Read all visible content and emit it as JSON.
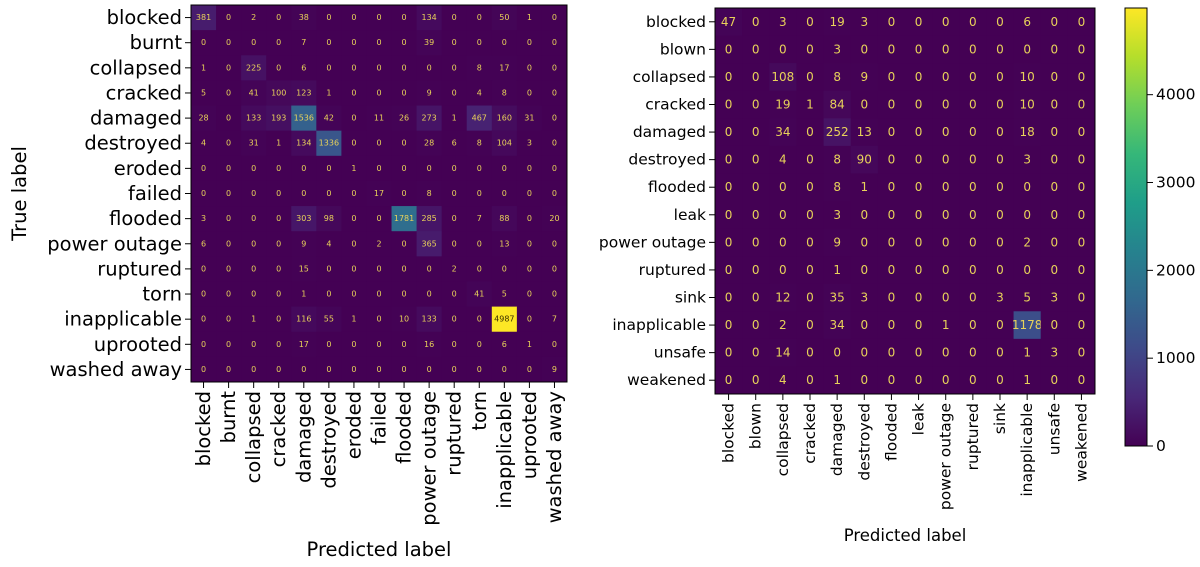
{
  "chart_data": [
    {
      "type": "heatmap",
      "title": "",
      "xlabel": "Predicted label",
      "ylabel": "True label",
      "labels": [
        "blocked",
        "burnt",
        "collapsed",
        "cracked",
        "damaged",
        "destroyed",
        "eroded",
        "failed",
        "flooded",
        "power outage",
        "ruptured",
        "torn",
        "inapplicable",
        "uprooted",
        "washed away"
      ],
      "matrix": [
        [
          381,
          0,
          2,
          0,
          38,
          0,
          0,
          0,
          0,
          134,
          0,
          0,
          50,
          1,
          0
        ],
        [
          0,
          0,
          0,
          0,
          7,
          0,
          0,
          0,
          0,
          39,
          0,
          0,
          0,
          0,
          0
        ],
        [
          1,
          0,
          225,
          0,
          6,
          0,
          0,
          0,
          0,
          0,
          0,
          8,
          17,
          0,
          0
        ],
        [
          5,
          0,
          41,
          100,
          123,
          1,
          0,
          0,
          0,
          9,
          0,
          4,
          8,
          0,
          0
        ],
        [
          28,
          0,
          133,
          193,
          1536,
          42,
          0,
          11,
          26,
          273,
          1,
          467,
          160,
          31,
          0
        ],
        [
          4,
          0,
          31,
          1,
          134,
          1336,
          0,
          0,
          0,
          28,
          6,
          8,
          104,
          3,
          0
        ],
        [
          0,
          0,
          0,
          0,
          0,
          0,
          1,
          0,
          0,
          0,
          0,
          0,
          0,
          0,
          0
        ],
        [
          0,
          0,
          0,
          0,
          0,
          0,
          0,
          17,
          0,
          8,
          0,
          0,
          0,
          0,
          0
        ],
        [
          3,
          0,
          0,
          0,
          303,
          98,
          0,
          0,
          1781,
          285,
          0,
          7,
          88,
          0,
          20
        ],
        [
          6,
          0,
          0,
          0,
          9,
          4,
          0,
          2,
          0,
          365,
          0,
          0,
          13,
          0,
          0
        ],
        [
          0,
          0,
          0,
          0,
          15,
          0,
          0,
          0,
          0,
          0,
          2,
          0,
          0,
          0,
          0
        ],
        [
          0,
          0,
          0,
          0,
          1,
          0,
          0,
          0,
          0,
          0,
          0,
          41,
          5,
          0,
          0
        ],
        [
          0,
          0,
          1,
          0,
          116,
          55,
          1,
          0,
          10,
          133,
          0,
          0,
          4987,
          0,
          7
        ],
        [
          0,
          0,
          0,
          0,
          17,
          0,
          0,
          0,
          0,
          16,
          0,
          0,
          6,
          1,
          0
        ],
        [
          0,
          0,
          0,
          0,
          0,
          0,
          0,
          0,
          0,
          0,
          0,
          0,
          0,
          0,
          9
        ]
      ],
      "color_scale": "viridis",
      "vmin": 0,
      "vmax": 4987
    },
    {
      "type": "heatmap",
      "title": "",
      "xlabel": "Predicted label",
      "ylabel": "",
      "labels": [
        "blocked",
        "blown",
        "collapsed",
        "cracked",
        "damaged",
        "destroyed",
        "flooded",
        "leak",
        "power outage",
        "ruptured",
        "sink",
        "inapplicable",
        "unsafe",
        "weakened"
      ],
      "matrix": [
        [
          47,
          0,
          3,
          0,
          19,
          3,
          0,
          0,
          0,
          0,
          0,
          6,
          0,
          0
        ],
        [
          0,
          0,
          0,
          0,
          3,
          0,
          0,
          0,
          0,
          0,
          0,
          0,
          0,
          0
        ],
        [
          0,
          0,
          108,
          0,
          8,
          9,
          0,
          0,
          0,
          0,
          0,
          10,
          0,
          0
        ],
        [
          0,
          0,
          19,
          1,
          84,
          0,
          0,
          0,
          0,
          0,
          0,
          10,
          0,
          0
        ],
        [
          0,
          0,
          34,
          0,
          252,
          13,
          0,
          0,
          0,
          0,
          0,
          18,
          0,
          0
        ],
        [
          0,
          0,
          4,
          0,
          8,
          90,
          0,
          0,
          0,
          0,
          0,
          3,
          0,
          0
        ],
        [
          0,
          0,
          0,
          0,
          8,
          1,
          0,
          0,
          0,
          0,
          0,
          0,
          0,
          0
        ],
        [
          0,
          0,
          0,
          0,
          3,
          0,
          0,
          0,
          0,
          0,
          0,
          0,
          0,
          0
        ],
        [
          0,
          0,
          0,
          0,
          9,
          0,
          0,
          0,
          0,
          0,
          0,
          2,
          0,
          0
        ],
        [
          0,
          0,
          0,
          0,
          1,
          0,
          0,
          0,
          0,
          0,
          0,
          0,
          0,
          0
        ],
        [
          0,
          0,
          12,
          0,
          35,
          3,
          0,
          0,
          0,
          0,
          3,
          5,
          3,
          0
        ],
        [
          0,
          0,
          2,
          0,
          34,
          0,
          0,
          0,
          1,
          0,
          0,
          1178,
          0,
          0
        ],
        [
          0,
          0,
          14,
          0,
          0,
          0,
          0,
          0,
          0,
          0,
          0,
          1,
          3,
          0
        ],
        [
          0,
          0,
          4,
          0,
          1,
          0,
          0,
          0,
          0,
          0,
          0,
          1,
          0,
          0
        ]
      ],
      "color_scale": "viridis",
      "vmin": 0,
      "vmax": 4987,
      "colorbar_ticks": [
        "0",
        "1000",
        "2000",
        "3000",
        "4000"
      ],
      "colorbar_values": [
        0,
        1000,
        2000,
        3000,
        4000
      ]
    }
  ]
}
